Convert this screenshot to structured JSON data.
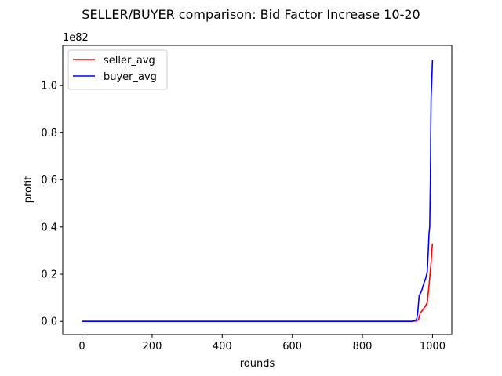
{
  "chart_data": {
    "type": "line",
    "title": "SELLER/BUYER comparison: Bid Factor Increase 10-20",
    "xlabel": "rounds",
    "ylabel": "profit",
    "y_scale_label": "1e82",
    "xlim": [
      -55,
      1055
    ],
    "ylim": [
      -0.0557,
      1.17
    ],
    "xticks": [
      0,
      200,
      400,
      600,
      800,
      1000
    ],
    "xtick_labels": [
      "0",
      "200",
      "400",
      "600",
      "800",
      "1000"
    ],
    "yticks": [
      0.0,
      0.2,
      0.4,
      0.6,
      0.8,
      1.0
    ],
    "ytick_labels": [
      "0.0",
      "0.2",
      "0.4",
      "0.6",
      "0.8",
      "1.0"
    ],
    "grid": false,
    "legend_position": "upper left",
    "series": [
      {
        "name": "seller_avg",
        "color": "#ff0000",
        "x": [
          0,
          100,
          200,
          300,
          400,
          500,
          600,
          700,
          800,
          900,
          940,
          955,
          960,
          965,
          970,
          975,
          980,
          985,
          990,
          993,
          996,
          998,
          1000
        ],
        "y": [
          0,
          0,
          0,
          0,
          0,
          0,
          0,
          0,
          0,
          0,
          0,
          0.002,
          0.008,
          0.035,
          0.045,
          0.055,
          0.065,
          0.08,
          0.15,
          0.2,
          0.25,
          0.3,
          0.33
        ]
      },
      {
        "name": "buyer_avg",
        "color": "#0000ff",
        "x": [
          0,
          100,
          200,
          300,
          400,
          500,
          600,
          700,
          800,
          900,
          940,
          950,
          955,
          958,
          962,
          966,
          970,
          975,
          980,
          985,
          988,
          990,
          992,
          994,
          995,
          996,
          998,
          1000
        ],
        "y": [
          0,
          0,
          0,
          0,
          0,
          0,
          0,
          0,
          0,
          0,
          0,
          0.003,
          0.01,
          0.04,
          0.11,
          0.12,
          0.135,
          0.16,
          0.18,
          0.21,
          0.3,
          0.37,
          0.4,
          0.6,
          0.8,
          0.95,
          1.02,
          1.11
        ]
      }
    ]
  }
}
